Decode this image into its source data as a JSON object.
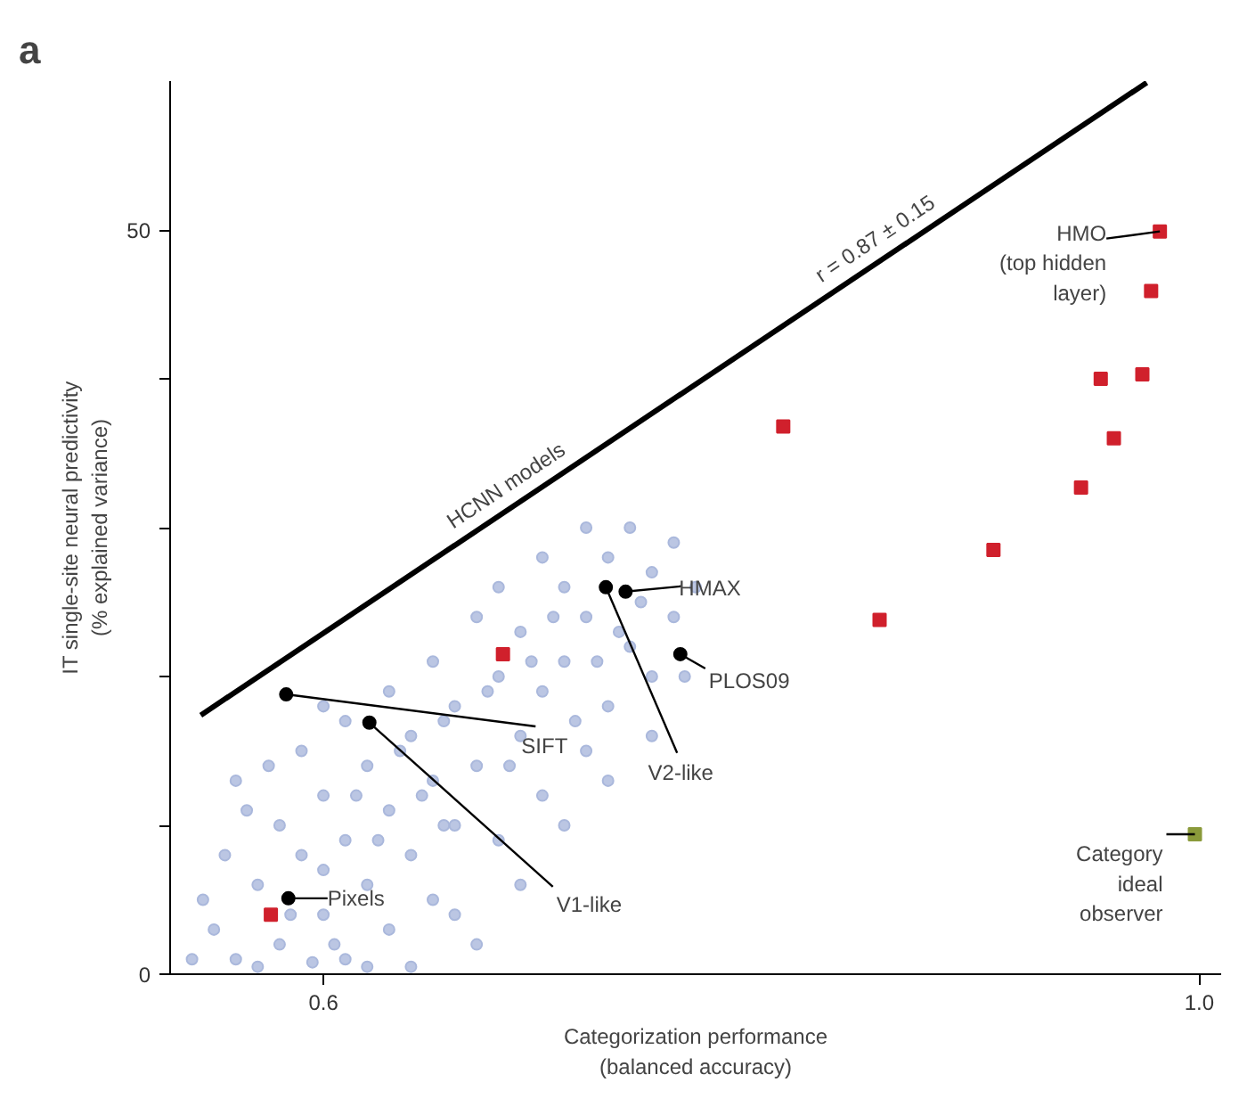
{
  "chart_data": {
    "type": "scatter",
    "xlabel": "Categorization performance\n(balanced accuracy)",
    "ylabel": "IT single-site neural predictivity\n(% explained variance)",
    "xlim": [
      0.53,
      1.01
    ],
    "ylim": [
      0,
      60
    ],
    "xticks": [
      0.6,
      {
        "value": 1.0,
        "label": "1.0"
      }
    ],
    "yticks": [
      0,
      {
        "value": 10,
        "label": null
      },
      {
        "value": 20,
        "label": null
      },
      {
        "value": 30,
        "label": null
      },
      {
        "value": 40,
        "label": null
      },
      50
    ],
    "grid": false,
    "series": [
      {
        "type": "scatter",
        "marker": "circle",
        "color": "#aab8dc",
        "x": [
          0.54,
          0.55,
          0.56,
          0.57,
          0.555,
          0.565,
          0.58,
          0.59,
          0.6,
          0.6,
          0.59,
          0.575,
          0.61,
          0.61,
          0.62,
          0.62,
          0.63,
          0.63,
          0.64,
          0.64,
          0.65,
          0.65,
          0.66,
          0.66,
          0.67,
          0.67,
          0.68,
          0.68,
          0.69,
          0.69,
          0.7,
          0.7,
          0.71,
          0.71,
          0.72,
          0.72,
          0.73,
          0.73,
          0.74,
          0.74,
          0.75,
          0.75,
          0.76,
          0.76,
          0.77,
          0.6,
          0.61,
          0.63,
          0.65,
          0.67,
          0.68,
          0.7,
          0.72,
          0.545,
          0.56,
          0.58,
          0.62,
          0.64,
          0.66,
          0.69,
          0.71,
          0.73,
          0.75,
          0.57,
          0.595,
          0.6,
          0.615,
          0.635,
          0.655,
          0.675,
          0.695,
          0.705,
          0.725,
          0.745,
          0.765,
          0.715,
          0.735,
          0.685,
          0.655,
          0.625,
          0.645,
          0.585,
          0.605
        ],
        "values": [
          1,
          3,
          1,
          6,
          8,
          11,
          2,
          8,
          4,
          12,
          15,
          14,
          1,
          9,
          6,
          14,
          3,
          11,
          8,
          16,
          5,
          13,
          10,
          18,
          2,
          14,
          9,
          20,
          16,
          23,
          12,
          19,
          21,
          26,
          15,
          24,
          18,
          28,
          22,
          30,
          20,
          27,
          24,
          29,
          26,
          18,
          17,
          19,
          21,
          24,
          26,
          28,
          30,
          5,
          13,
          10,
          0.5,
          0.5,
          4,
          6,
          10,
          13,
          16,
          0.5,
          0.8,
          7,
          12,
          15,
          17,
          19,
          21,
          24,
          21,
          25,
          20,
          17,
          23,
          14,
          10,
          9,
          12,
          4,
          2
        ]
      },
      {
        "type": "line",
        "line_style": "solid",
        "color": "#000000",
        "x": [
          0.544,
          0.976
        ],
        "values": [
          17.4,
          59.9
        ]
      },
      {
        "type": "scatter",
        "marker": "square",
        "color": "#d0202c",
        "x": [
          0.982,
          0.978,
          0.955,
          0.974,
          0.961,
          0.946,
          0.81,
          0.906,
          0.854,
          0.682,
          0.576
        ],
        "values": [
          49.9,
          45.9,
          40.0,
          40.3,
          36.0,
          32.7,
          36.8,
          28.5,
          23.8,
          21.5,
          4.0
        ]
      },
      {
        "type": "scatter",
        "marker": "square",
        "color": "#8a9a3a",
        "x": [
          0.998
        ],
        "values": [
          9.4
        ]
      },
      {
        "type": "scatter",
        "marker": "circle",
        "color": "#000000",
        "x": [
          0.584,
          0.583,
          0.621,
          0.738,
          0.729,
          0.763
        ],
        "values": [
          5.1,
          18.8,
          16.9,
          25.7,
          26.0,
          21.5
        ]
      }
    ],
    "annotations": [
      "a",
      "HCNN models",
      "r = 0.87 ± 0.15",
      {
        "text": "HMO\n(top hidden\nlayer)",
        "x": 0.982,
        "y": 49.9
      },
      {
        "text": "Pixels",
        "x": 0.584,
        "y": 5.1
      },
      {
        "text": "SIFT",
        "x": 0.583,
        "y": 18.8
      },
      {
        "text": "V1-like",
        "x": 0.621,
        "y": 16.9
      },
      {
        "text": "HMAX",
        "x": 0.738,
        "y": 25.7
      },
      {
        "text": "V2-like",
        "x": 0.729,
        "y": 26.0
      },
      {
        "text": "PLOS09",
        "x": 0.763,
        "y": 21.5
      },
      {
        "text": "Category\nideal\nobserver",
        "x": 0.998,
        "y": 9.4
      }
    ]
  }
}
